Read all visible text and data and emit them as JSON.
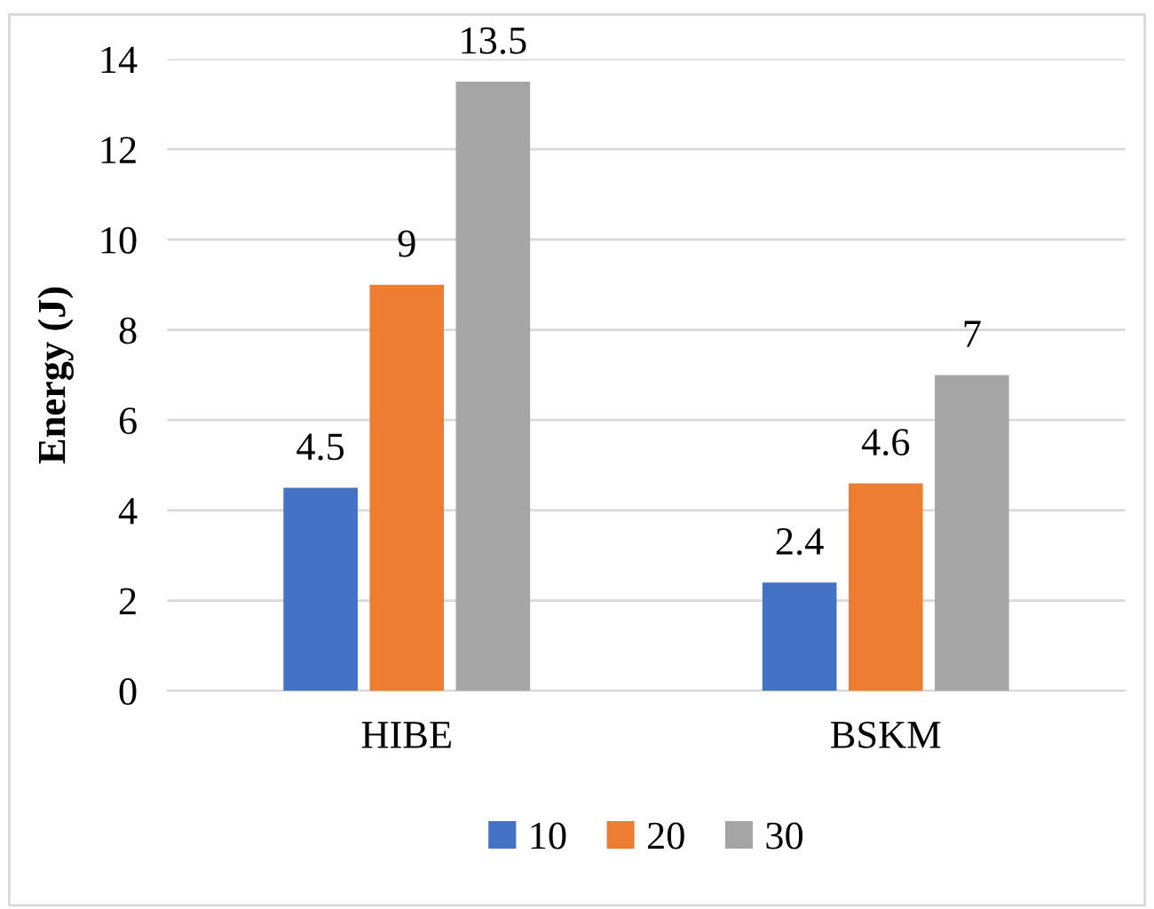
{
  "chart_data": {
    "type": "bar",
    "ylabel": "Energy (J)",
    "categories": [
      "HIBE",
      "BSKM"
    ],
    "series": [
      {
        "name": "10",
        "color": "#4472c4",
        "values": [
          4.5,
          2.4
        ]
      },
      {
        "name": "20",
        "color": "#ed7d31",
        "values": [
          9,
          4.6
        ]
      },
      {
        "name": "30",
        "color": "#a5a5a5",
        "values": [
          13.5,
          7
        ]
      }
    ],
    "ylim": [
      0,
      14
    ],
    "yticks": [
      0,
      2,
      4,
      6,
      8,
      10,
      12,
      14
    ],
    "grid": "y",
    "legend": "bottom",
    "data_labels": true
  }
}
